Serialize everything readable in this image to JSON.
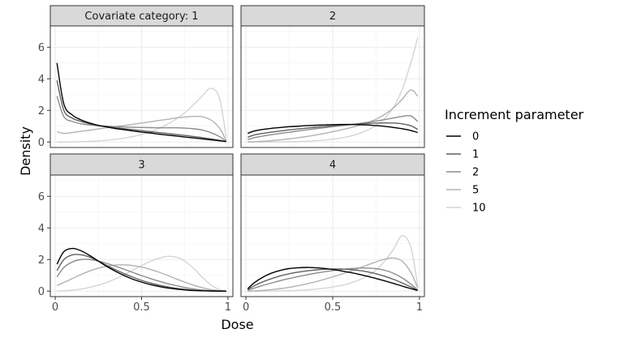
{
  "chart_data": {
    "type": "line",
    "title": "",
    "xlabel": "Dose",
    "ylabel": "Density",
    "xlim": [
      0,
      1
    ],
    "ylim": [
      0,
      7
    ],
    "x_ticks": [
      0,
      0.5,
      1
    ],
    "x_tick_labels": [
      "0",
      "0.5",
      "1"
    ],
    "y_ticks": [
      0,
      2,
      4,
      6
    ],
    "y_tick_labels": [
      "0",
      "2",
      "4",
      "6"
    ],
    "grid": true,
    "legend": {
      "title": "Increment parameter",
      "placement": "right",
      "entries": [
        "0",
        "1",
        "2",
        "5",
        "10"
      ],
      "colors": [
        "#000000",
        "#616161",
        "#8c8c8c",
        "#b3b3b3",
        "#d4d4d4"
      ]
    },
    "x": [
      0.01,
      0.05,
      0.1,
      0.15,
      0.2,
      0.25,
      0.3,
      0.35,
      0.4,
      0.45,
      0.5,
      0.55,
      0.6,
      0.65,
      0.7,
      0.75,
      0.8,
      0.85,
      0.9,
      0.95,
      0.99
    ],
    "panels": [
      {
        "strip": "Covariate category: 1",
        "series": [
          {
            "name": "0",
            "values": [
              5.0,
              2.4,
              1.7,
              1.4,
              1.2,
              1.05,
              0.95,
              0.85,
              0.78,
              0.7,
              0.63,
              0.57,
              0.5,
              0.44,
              0.38,
              0.32,
              0.26,
              0.2,
              0.14,
              0.08,
              0.03
            ]
          },
          {
            "name": "1",
            "values": [
              3.9,
              2.0,
              1.5,
              1.3,
              1.15,
              1.05,
              0.97,
              0.9,
              0.84,
              0.78,
              0.72,
              0.66,
              0.6,
              0.54,
              0.48,
              0.42,
              0.35,
              0.28,
              0.2,
              0.11,
              0.03
            ]
          },
          {
            "name": "2",
            "values": [
              2.9,
              1.6,
              1.3,
              1.15,
              1.08,
              1.03,
              1.0,
              0.97,
              0.95,
              0.93,
              0.92,
              0.91,
              0.9,
              0.9,
              0.9,
              0.88,
              0.84,
              0.76,
              0.6,
              0.35,
              0.05
            ]
          },
          {
            "name": "5",
            "values": [
              0.65,
              0.55,
              0.6,
              0.68,
              0.75,
              0.83,
              0.9,
              0.98,
              1.05,
              1.12,
              1.2,
              1.28,
              1.36,
              1.44,
              1.52,
              1.58,
              1.62,
              1.6,
              1.4,
              0.9,
              0.1
            ]
          },
          {
            "name": "10",
            "values": [
              0.0,
              0.0,
              0.01,
              0.02,
              0.04,
              0.07,
              0.11,
              0.17,
              0.25,
              0.35,
              0.48,
              0.65,
              0.86,
              1.12,
              1.45,
              1.85,
              2.35,
              2.9,
              3.4,
              2.8,
              0.3
            ]
          }
        ]
      },
      {
        "strip": "2",
        "series": [
          {
            "name": "0",
            "values": [
              0.55,
              0.7,
              0.8,
              0.87,
              0.92,
              0.97,
              1.0,
              1.04,
              1.06,
              1.08,
              1.1,
              1.11,
              1.11,
              1.1,
              1.08,
              1.04,
              0.99,
              0.92,
              0.84,
              0.73,
              0.6
            ]
          },
          {
            "name": "1",
            "values": [
              0.3,
              0.45,
              0.55,
              0.63,
              0.7,
              0.77,
              0.83,
              0.88,
              0.93,
              0.98,
              1.02,
              1.06,
              1.1,
              1.14,
              1.17,
              1.2,
              1.21,
              1.2,
              1.15,
              1.03,
              0.8
            ]
          },
          {
            "name": "2",
            "values": [
              0.15,
              0.28,
              0.38,
              0.47,
              0.55,
              0.62,
              0.7,
              0.77,
              0.84,
              0.9,
              0.97,
              1.04,
              1.1,
              1.17,
              1.25,
              1.33,
              1.42,
              1.52,
              1.62,
              1.65,
              1.3
            ]
          },
          {
            "name": "5",
            "values": [
              0.0,
              0.02,
              0.05,
              0.09,
              0.14,
              0.2,
              0.27,
              0.35,
              0.44,
              0.54,
              0.65,
              0.77,
              0.9,
              1.05,
              1.22,
              1.45,
              1.75,
              2.15,
              2.7,
              3.3,
              2.9
            ]
          },
          {
            "name": "10",
            "values": [
              0.0,
              0.0,
              0.0,
              0.0,
              0.01,
              0.02,
              0.03,
              0.05,
              0.08,
              0.12,
              0.18,
              0.26,
              0.37,
              0.53,
              0.75,
              1.05,
              1.5,
              2.2,
              3.3,
              5.0,
              6.6
            ]
          }
        ]
      },
      {
        "strip": "3",
        "series": [
          {
            "name": "0",
            "values": [
              1.7,
              2.5,
              2.7,
              2.55,
              2.25,
              1.9,
              1.55,
              1.25,
              0.98,
              0.75,
              0.57,
              0.42,
              0.3,
              0.2,
              0.13,
              0.08,
              0.04,
              0.02,
              0.01,
              0.0,
              0.0
            ]
          },
          {
            "name": "1",
            "values": [
              1.3,
              2.0,
              2.3,
              2.3,
              2.15,
              1.9,
              1.62,
              1.35,
              1.1,
              0.88,
              0.68,
              0.52,
              0.38,
              0.27,
              0.18,
              0.11,
              0.06,
              0.03,
              0.01,
              0.0,
              0.0
            ]
          },
          {
            "name": "2",
            "values": [
              0.9,
              1.5,
              1.85,
              2.0,
              2.0,
              1.9,
              1.75,
              1.57,
              1.38,
              1.18,
              0.98,
              0.8,
              0.63,
              0.48,
              0.35,
              0.23,
              0.14,
              0.07,
              0.03,
              0.01,
              0.0
            ]
          },
          {
            "name": "5",
            "values": [
              0.35,
              0.55,
              0.8,
              1.05,
              1.28,
              1.45,
              1.58,
              1.65,
              1.66,
              1.62,
              1.52,
              1.38,
              1.2,
              1.0,
              0.78,
              0.57,
              0.38,
              0.22,
              0.1,
              0.03,
              0.0
            ]
          },
          {
            "name": "10",
            "values": [
              0.0,
              0.02,
              0.06,
              0.13,
              0.24,
              0.38,
              0.56,
              0.78,
              1.04,
              1.33,
              1.62,
              1.88,
              2.08,
              2.2,
              2.15,
              1.9,
              1.45,
              0.9,
              0.4,
              0.1,
              0.0
            ]
          }
        ]
      },
      {
        "strip": "4",
        "series": [
          {
            "name": "0",
            "values": [
              0.15,
              0.55,
              0.9,
              1.15,
              1.32,
              1.43,
              1.48,
              1.5,
              1.48,
              1.44,
              1.37,
              1.28,
              1.18,
              1.07,
              0.94,
              0.8,
              0.65,
              0.49,
              0.32,
              0.16,
              0.04
            ]
          },
          {
            "name": "1",
            "values": [
              0.1,
              0.35,
              0.6,
              0.8,
              0.97,
              1.1,
              1.2,
              1.28,
              1.34,
              1.38,
              1.4,
              1.4,
              1.37,
              1.31,
              1.22,
              1.1,
              0.94,
              0.75,
              0.52,
              0.27,
              0.05
            ]
          },
          {
            "name": "2",
            "values": [
              0.06,
              0.2,
              0.37,
              0.52,
              0.67,
              0.8,
              0.92,
              1.03,
              1.13,
              1.22,
              1.3,
              1.37,
              1.42,
              1.46,
              1.46,
              1.42,
              1.32,
              1.13,
              0.84,
              0.45,
              0.08
            ]
          },
          {
            "name": "5",
            "values": [
              0.0,
              0.02,
              0.05,
              0.1,
              0.16,
              0.24,
              0.34,
              0.46,
              0.59,
              0.74,
              0.9,
              1.07,
              1.25,
              1.45,
              1.65,
              1.85,
              2.02,
              2.1,
              1.9,
              1.2,
              0.2
            ]
          },
          {
            "name": "10",
            "values": [
              0.0,
              0.0,
              0.0,
              0.01,
              0.02,
              0.03,
              0.05,
              0.08,
              0.12,
              0.18,
              0.26,
              0.36,
              0.5,
              0.7,
              0.97,
              1.35,
              1.9,
              2.65,
              3.5,
              2.8,
              0.3
            ]
          }
        ]
      }
    ]
  }
}
